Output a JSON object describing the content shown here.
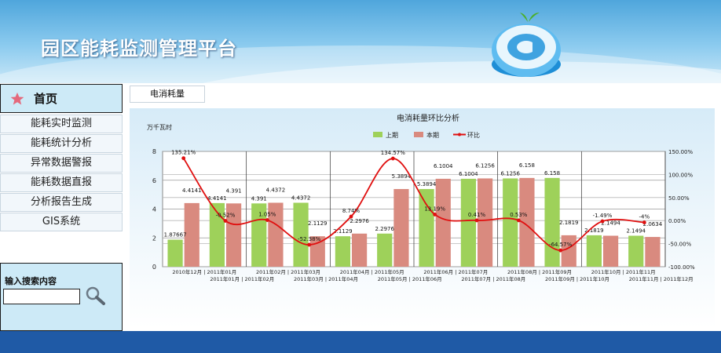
{
  "header": {
    "app_title": "园区能耗监测管理平台",
    "logo_icon": "at-sign-logo"
  },
  "sidebar": {
    "home_label": "首页",
    "items": [
      {
        "label": "能耗实时监测"
      },
      {
        "label": "能耗统计分析"
      },
      {
        "label": "异常数据警报"
      },
      {
        "label": "能耗数据直报"
      },
      {
        "label": "分析报告生成"
      },
      {
        "label": "GIS系统"
      }
    ],
    "search": {
      "label": "输入搜索内容",
      "value": "",
      "placeholder": ""
    }
  },
  "main": {
    "tab_label": "电消耗量"
  },
  "colors": {
    "prev": "#9ed15a",
    "curr": "#d98a7f",
    "ratio": "#e01010",
    "footer": "#1f5aa6"
  },
  "chart_data": {
    "type": "bar",
    "title": "电消耗量环比分析",
    "ylabel": "万千瓦时",
    "ylim": [
      0,
      8
    ],
    "yticks": [
      0,
      2,
      4,
      6,
      8
    ],
    "y2lim": [
      -100,
      150
    ],
    "y2ticks": [
      "150.00%",
      "100.00%",
      "50.00%",
      "0.00%",
      "-50.00%",
      "-100.00%"
    ],
    "y2tick_values": [
      150,
      100,
      50,
      0,
      -50,
      -100
    ],
    "legend": [
      "上期",
      "本期",
      "环比"
    ],
    "legend_position": "top",
    "grid": true,
    "categories_top": [
      "2010年12月 | 2011年01月",
      "2011年02月 | 2011年03月",
      "2011年04月 | 2011年05月",
      "2011年06月 | 2011年07月",
      "2011年08月 | 2011年09月",
      "2011年10月 | 2011年11月"
    ],
    "categories_bottom": [
      "2011年01月 | 2011年02月",
      "2011年03月 | 2011年04月",
      "2011年05月 | 2011年06月",
      "2011年07月 | 2011年08月",
      "2011年09月 | 2011年10月",
      "2011年11月 | 2011年12月"
    ],
    "prev_values": [
      1.87667,
      4.4141,
      4.391,
      4.4372,
      2.1129,
      2.2976,
      5.3894,
      6.1004,
      6.1256,
      6.158,
      2.1819,
      2.1494
    ],
    "curr_values": [
      4.4141,
      4.391,
      4.4372,
      2.1129,
      2.2976,
      5.3894,
      6.1004,
      6.1256,
      6.158,
      2.1819,
      2.1494,
      2.0634
    ],
    "prev_labels": [
      "1.87667",
      "4.4141",
      "4.391",
      "4.4372",
      "2.1129",
      "2.2976",
      "5.3894",
      "6.1004",
      "6.1256",
      "6.158",
      "2.1819",
      "2.1494"
    ],
    "curr_labels": [
      "4.4141",
      "4.391",
      "4.4372",
      "2.1129",
      "2.2976",
      "5.3894",
      "6.1004",
      "6.1256",
      "6.158",
      "2.1819",
      "2.1494",
      "2.0634"
    ],
    "ratio_values": [
      135.21,
      -0.52,
      1.05,
      -52.38,
      8.74,
      134.57,
      13.19,
      0.41,
      0.53,
      -64.57,
      -1.49,
      -4
    ],
    "ratio_labels": [
      "135.21%",
      "-0.52%",
      "1.05%",
      "-52.38%",
      "8.74%",
      "134.57%",
      "13.19%",
      "0.41%",
      "0.53%",
      "-64.57%",
      "-1.49%",
      "-4%"
    ]
  }
}
